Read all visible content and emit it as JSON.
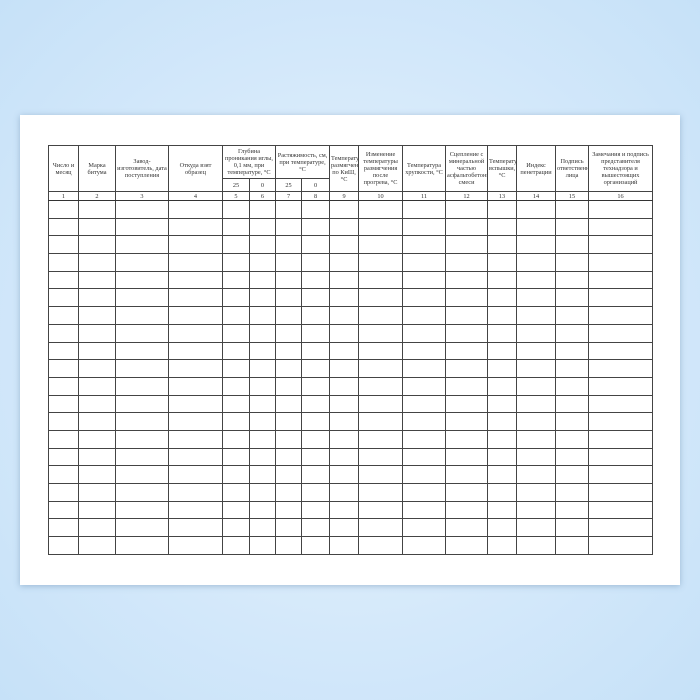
{
  "headers": {
    "c1": "Число и месяц",
    "c2": "Марка битума",
    "c3": "Завод-изготовитель, дата поступления",
    "c4": "Откуда взят образец",
    "c5": "Глубина проникания иглы, 0,1 мм, при температуре, °С",
    "c5a": "25",
    "c5b": "0",
    "c7": "Растяжимость, см, при температуре, °С",
    "c7a": "25",
    "c7b": "0",
    "c9": "Температура размягчения по КиШ, °С",
    "c10": "Изменение температуры размягчения после прогрева, °С",
    "c11": "Температура хрупкости, °С",
    "c12": "Сцепление с минеральной частью асфальтобетонной смеси",
    "c13": "Температура вспышки, °С",
    "c14": "Индекс пенетрации",
    "c15": "Подпись ответственного лица",
    "c16": "Замечания и подпись представителя технадзора и вышестоящих организаций"
  },
  "column_numbers": [
    "1",
    "2",
    "3",
    "4",
    "5",
    "6",
    "7",
    "8",
    "9",
    "10",
    "11",
    "12",
    "13",
    "14",
    "15",
    "16"
  ],
  "empty_rows": 20
}
